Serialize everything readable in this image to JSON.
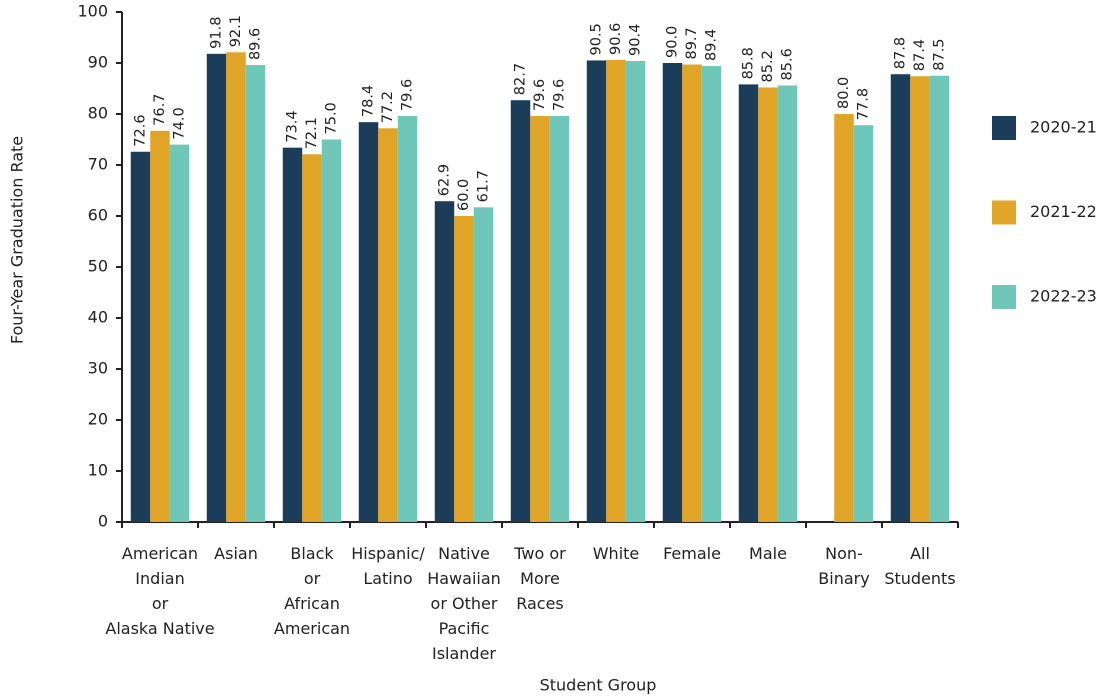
{
  "chart_data": {
    "type": "bar",
    "x_label": "Student Group",
    "y_label": "Four-Year Graduation Rate",
    "categories": [
      "American\nIndian\nor\nAlaska Native",
      "Asian",
      "Black\nor\nAfrican\nAmerican",
      "Hispanic/\nLatino",
      "Native\nHawaiian\nor Other\nPacific\nIslander",
      "Two or\nMore\nRaces",
      "White",
      "Female",
      "Male",
      "Non-\nBinary",
      "All\nStudents"
    ],
    "series": [
      {
        "name": "2020-21",
        "color": "#1b3d5a",
        "values": [
          72.6,
          91.8,
          73.4,
          78.4,
          62.9,
          82.7,
          90.5,
          90.0,
          85.8,
          null,
          87.8
        ],
        "value_labels": [
          "72.6",
          "91.8",
          "73.4",
          "78.4",
          "62.9",
          "82.7",
          "90.5",
          "90.0",
          "85.8",
          null,
          "87.8"
        ]
      },
      {
        "name": "2021-22",
        "color": "#e0a526",
        "values": [
          76.7,
          92.1,
          72.1,
          77.2,
          60.0,
          79.6,
          90.6,
          89.7,
          85.2,
          80.0,
          87.4
        ],
        "value_labels": [
          "76.7",
          "92.1",
          "72.1",
          "77.2",
          "60.0",
          "79.6",
          "90.6",
          "89.7",
          "85.2",
          "80.0",
          "87.4"
        ]
      },
      {
        "name": "2022-23",
        "color": "#6fc7b9",
        "values": [
          74.0,
          89.6,
          75.0,
          79.6,
          61.7,
          79.6,
          90.4,
          89.4,
          85.6,
          77.8,
          87.5
        ],
        "value_labels": [
          "74.0",
          "89.6",
          "75.0",
          "79.6",
          "61.7",
          "79.6",
          "90.4",
          "89.4",
          "85.6",
          "77.8",
          "87.5"
        ]
      }
    ],
    "ylim": [
      0,
      100
    ],
    "yticks": [
      0,
      10,
      20,
      30,
      40,
      50,
      60,
      70,
      80,
      90,
      100
    ],
    "grid": false,
    "legend": "right"
  }
}
